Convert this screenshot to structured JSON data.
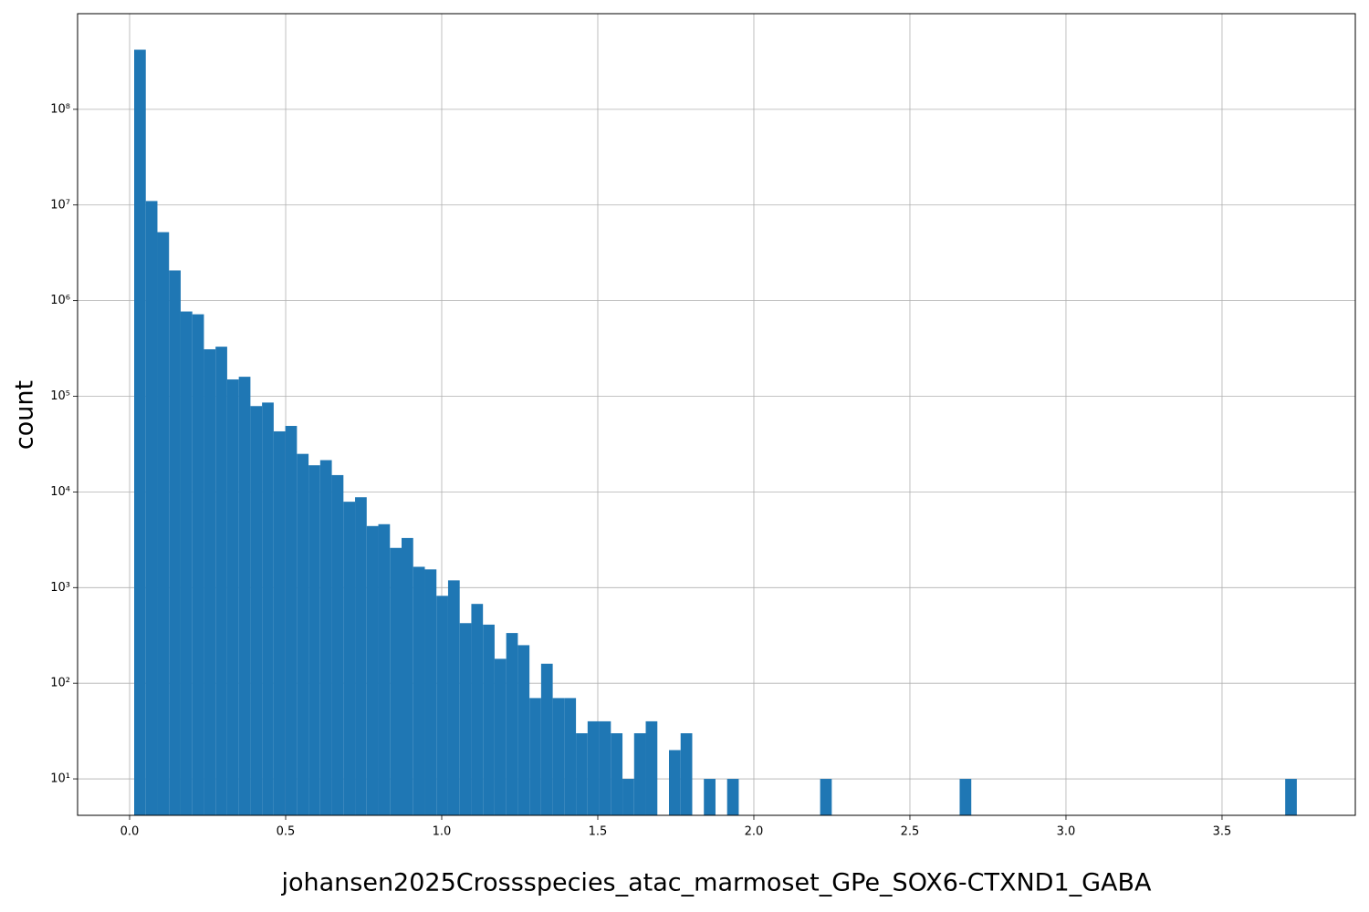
{
  "chart_data": {
    "type": "histogram",
    "xlabel": "johansen2025Crossspecies_atac_marmoset_GPe_SOX6-CTXND1_GABA",
    "ylabel": "count",
    "color": "#1f77b4",
    "grid": true,
    "log_y": true,
    "bins": [
      0.0146,
      0.05185,
      0.0891,
      0.12635,
      0.1636,
      0.20085,
      0.2381,
      0.27535,
      0.3126,
      0.34985,
      0.3871,
      0.42435,
      0.4616,
      0.49885,
      0.5361,
      0.57335,
      0.6106,
      0.64785,
      0.6851,
      0.72235,
      0.7596,
      0.79685,
      0.8341,
      0.87135,
      0.9086,
      0.94585,
      0.9831,
      1.02035,
      1.0576,
      1.09485,
      1.1321,
      1.16935,
      1.2066,
      1.24385,
      1.2811,
      1.31835,
      1.3556,
      1.39285,
      1.4301,
      1.46735,
      1.5046,
      1.54185,
      1.5791,
      1.61635,
      1.6536,
      1.69085,
      1.7281,
      1.76535,
      1.8026,
      1.83985,
      1.8771,
      1.91435,
      1.9516,
      1.98885,
      2.0261,
      2.06335,
      2.1006,
      2.13785,
      2.1751,
      2.21235,
      2.2496,
      2.28685,
      2.3241,
      2.36135,
      2.3986,
      2.43585,
      2.4731,
      2.51035,
      2.5476,
      2.58485,
      2.6221,
      2.65935,
      2.6966,
      2.73385,
      2.7711,
      2.80835,
      2.8456,
      2.88285,
      2.9201,
      2.95735,
      2.9946,
      3.03185,
      3.0691,
      3.10635,
      3.1436,
      3.18085,
      3.2181,
      3.25535,
      3.2926,
      3.32985,
      3.3671,
      3.40435,
      3.4416,
      3.47885,
      3.5161,
      3.55335,
      3.5906,
      3.62785,
      3.6651,
      3.70235,
      3.7396
    ],
    "counts": [
      420000000,
      11000000,
      5200000,
      2070000,
      770000,
      720000,
      310000,
      330000,
      150000,
      160000,
      79000,
      86000,
      43000,
      49000,
      25000,
      19000,
      21500,
      15000,
      7900,
      8800,
      4400,
      4600,
      2600,
      3300,
      1650,
      1550,
      820,
      1190,
      425,
      675,
      410,
      180,
      335,
      250,
      70,
      160,
      70,
      70,
      30,
      40,
      40,
      30,
      10,
      30,
      40,
      0,
      20,
      30,
      0,
      10,
      0,
      10,
      0,
      0,
      0,
      0,
      0,
      0,
      0,
      10,
      0,
      0,
      0,
      0,
      0,
      0,
      0,
      0,
      0,
      0,
      0,
      10,
      0,
      0,
      0,
      0,
      0,
      0,
      0,
      0,
      0,
      0,
      0,
      0,
      0,
      0,
      0,
      0,
      0,
      0,
      0,
      0,
      0,
      0,
      0,
      0,
      0,
      0,
      0,
      10
    ],
    "xlim": [
      -0.1667,
      3.927
    ],
    "ylim": [
      4.16,
      1000000000
    ],
    "xticks": [
      {
        "value": 0,
        "label": "0.0"
      },
      0.5,
      {
        "value": 1,
        "label": "1.0"
      },
      1.5,
      {
        "value": 2,
        "label": "2.0"
      },
      2.5,
      {
        "value": 3,
        "label": "3.0"
      },
      3.5
    ],
    "yticks": [
      {
        "value": 10,
        "label": "10¹"
      },
      {
        "value": 100,
        "label": "10²"
      },
      {
        "value": 1000,
        "label": "10³"
      },
      {
        "value": 10000,
        "label": "10⁴"
      },
      {
        "value": 100000,
        "label": "10⁵"
      },
      {
        "value": 1000000,
        "label": "10⁶"
      },
      {
        "value": 10000000,
        "label": "10⁷"
      },
      {
        "value": 100000000,
        "label": "10⁸"
      }
    ]
  }
}
